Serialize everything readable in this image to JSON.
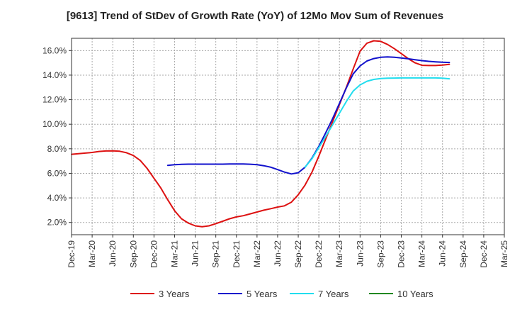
{
  "chart_data": {
    "type": "line",
    "title": "[9613]  Trend of StDev of Growth Rate (YoY) of 12Mo Mov Sum of Revenues",
    "xlabel": "",
    "ylabel": "",
    "x": [
      "Dec-19",
      "Mar-20",
      "Jun-20",
      "Sep-20",
      "Dec-20",
      "Mar-21",
      "Jun-21",
      "Sep-21",
      "Dec-21",
      "Mar-22",
      "Jun-22",
      "Sep-22",
      "Dec-22",
      "Mar-23",
      "Jun-23",
      "Sep-23",
      "Dec-23",
      "Mar-24",
      "Jun-24",
      "Sep-24",
      "Dec-24",
      "Mar-25"
    ],
    "y_ticks": [
      "2.0%",
      "4.0%",
      "6.0%",
      "8.0%",
      "10.0%",
      "12.0%",
      "14.0%",
      "16.0%"
    ],
    "ylim": [
      1.0,
      17.0
    ],
    "grid": true,
    "legend_position": "bottom",
    "series": [
      {
        "name": "3 Years",
        "color": "#dd1111",
        "points": [
          [
            0,
            7.55
          ],
          [
            0.333,
            7.6
          ],
          [
            0.667,
            7.65
          ],
          [
            1,
            7.7
          ],
          [
            1.333,
            7.78
          ],
          [
            1.667,
            7.82
          ],
          [
            2,
            7.83
          ],
          [
            2.333,
            7.8
          ],
          [
            2.667,
            7.68
          ],
          [
            3,
            7.45
          ],
          [
            3.333,
            7.05
          ],
          [
            3.667,
            6.4
          ],
          [
            4,
            5.6
          ],
          [
            4.333,
            4.8
          ],
          [
            4.667,
            3.85
          ],
          [
            5,
            2.95
          ],
          [
            5.333,
            2.3
          ],
          [
            5.667,
            1.95
          ],
          [
            6,
            1.72
          ],
          [
            6.333,
            1.65
          ],
          [
            6.667,
            1.72
          ],
          [
            7,
            1.9
          ],
          [
            7.333,
            2.1
          ],
          [
            7.667,
            2.3
          ],
          [
            8,
            2.45
          ],
          [
            8.333,
            2.55
          ],
          [
            8.667,
            2.7
          ],
          [
            9,
            2.85
          ],
          [
            9.333,
            3.0
          ],
          [
            9.667,
            3.12
          ],
          [
            10,
            3.25
          ],
          [
            10.333,
            3.35
          ],
          [
            10.667,
            3.65
          ],
          [
            11,
            4.25
          ],
          [
            11.333,
            5.05
          ],
          [
            11.667,
            6.1
          ],
          [
            12,
            7.4
          ],
          [
            12.333,
            8.8
          ],
          [
            12.667,
            10.2
          ],
          [
            13,
            11.6
          ],
          [
            13.333,
            13.0
          ],
          [
            13.667,
            14.5
          ],
          [
            14,
            15.95
          ],
          [
            14.333,
            16.6
          ],
          [
            14.667,
            16.8
          ],
          [
            15,
            16.75
          ],
          [
            15.333,
            16.5
          ],
          [
            15.667,
            16.15
          ],
          [
            16,
            15.75
          ],
          [
            16.333,
            15.35
          ],
          [
            16.667,
            15.0
          ],
          [
            17,
            14.8
          ],
          [
            17.333,
            14.78
          ],
          [
            17.667,
            14.78
          ],
          [
            18,
            14.82
          ],
          [
            18.333,
            14.88
          ]
        ]
      },
      {
        "name": "5 Years",
        "color": "#1111cc",
        "points": [
          [
            4.667,
            6.65
          ],
          [
            5,
            6.7
          ],
          [
            5.333,
            6.73
          ],
          [
            5.667,
            6.75
          ],
          [
            6,
            6.75
          ],
          [
            6.333,
            6.75
          ],
          [
            6.667,
            6.75
          ],
          [
            7,
            6.75
          ],
          [
            7.333,
            6.75
          ],
          [
            7.667,
            6.76
          ],
          [
            8,
            6.76
          ],
          [
            8.333,
            6.76
          ],
          [
            8.667,
            6.74
          ],
          [
            9,
            6.7
          ],
          [
            9.333,
            6.62
          ],
          [
            9.667,
            6.5
          ],
          [
            10,
            6.3
          ],
          [
            10.333,
            6.1
          ],
          [
            10.667,
            5.95
          ],
          [
            11,
            6.05
          ],
          [
            11.333,
            6.5
          ],
          [
            11.667,
            7.25
          ],
          [
            12,
            8.2
          ],
          [
            12.333,
            9.3
          ],
          [
            12.667,
            10.45
          ],
          [
            13,
            11.7
          ],
          [
            13.333,
            12.95
          ],
          [
            13.667,
            14.1
          ],
          [
            14,
            14.75
          ],
          [
            14.333,
            15.15
          ],
          [
            14.667,
            15.35
          ],
          [
            15,
            15.45
          ],
          [
            15.333,
            15.48
          ],
          [
            15.667,
            15.45
          ],
          [
            16,
            15.4
          ],
          [
            16.333,
            15.33
          ],
          [
            16.667,
            15.25
          ],
          [
            17,
            15.18
          ],
          [
            17.333,
            15.12
          ],
          [
            17.667,
            15.08
          ],
          [
            18,
            15.05
          ],
          [
            18.333,
            15.03
          ]
        ]
      },
      {
        "name": "7 Years",
        "color": "#22ddee",
        "points": [
          [
            11.333,
            6.5
          ],
          [
            11.667,
            7.2
          ],
          [
            12,
            8.1
          ],
          [
            12.333,
            9.0
          ],
          [
            12.667,
            9.95
          ],
          [
            13,
            10.9
          ],
          [
            13.333,
            11.85
          ],
          [
            13.667,
            12.7
          ],
          [
            14,
            13.2
          ],
          [
            14.333,
            13.5
          ],
          [
            14.667,
            13.65
          ],
          [
            15,
            13.72
          ],
          [
            15.333,
            13.75
          ],
          [
            15.667,
            13.76
          ],
          [
            16,
            13.77
          ],
          [
            16.333,
            13.77
          ],
          [
            16.667,
            13.77
          ],
          [
            17,
            13.77
          ],
          [
            17.333,
            13.77
          ],
          [
            17.667,
            13.77
          ],
          [
            18,
            13.75
          ],
          [
            18.333,
            13.7
          ]
        ]
      },
      {
        "name": "10 Years",
        "color": "#228822",
        "points": []
      }
    ]
  }
}
